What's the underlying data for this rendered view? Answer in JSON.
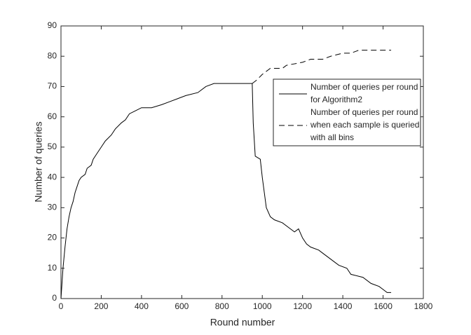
{
  "chart_data": {
    "type": "line",
    "xlabel": "Round number",
    "ylabel": "Number of queries",
    "xlim": [
      0,
      1800
    ],
    "xticks": [
      0,
      200,
      400,
      600,
      800,
      1000,
      1200,
      1400,
      1600,
      1800
    ],
    "ylim": [
      0,
      90
    ],
    "yticks": [
      0,
      10,
      20,
      30,
      40,
      50,
      60,
      70,
      80,
      90
    ],
    "grid": false,
    "legend": "upper right",
    "series": [
      {
        "name": "Number of queries per round\nfor Algorithm2",
        "color": "#000000",
        "style": "solid",
        "x": [
          0,
          5,
          10,
          20,
          30,
          40,
          50,
          60,
          70,
          80,
          90,
          100,
          120,
          130,
          150,
          160,
          180,
          200,
          220,
          250,
          270,
          300,
          320,
          340,
          370,
          400,
          450,
          500,
          540,
          580,
          620,
          680,
          720,
          760,
          950,
          955,
          965,
          990,
          1000,
          1010,
          1020,
          1040,
          1060,
          1100,
          1140,
          1160,
          1180,
          1200,
          1220,
          1240,
          1280,
          1300,
          1340,
          1380,
          1420,
          1440,
          1500,
          1540,
          1580,
          1600,
          1620,
          1640
        ],
        "values": [
          0,
          5,
          10,
          17,
          23,
          27,
          30,
          32,
          35,
          37,
          39,
          40,
          41,
          43,
          44,
          46,
          48,
          50,
          52,
          54,
          56,
          58,
          59,
          61,
          62,
          63,
          63,
          64,
          65,
          66,
          67,
          68,
          70,
          71,
          71,
          58,
          47,
          46,
          40,
          35,
          30,
          27,
          26,
          25,
          23,
          22,
          23,
          20,
          18,
          17,
          16,
          15,
          13,
          11,
          10,
          8,
          7,
          5,
          4,
          3,
          2,
          2
        ]
      },
      {
        "name": "Number of queries per round\nwhen each sample is queried\nwith all bins",
        "color": "#000000",
        "style": "dashed",
        "x": [
          950,
          970,
          1000,
          1020,
          1040,
          1100,
          1120,
          1200,
          1240,
          1300,
          1340,
          1400,
          1440,
          1480,
          1640
        ],
        "values": [
          71,
          72,
          74,
          75,
          76,
          76,
          77,
          78,
          79,
          79,
          80,
          81,
          81,
          82,
          82
        ]
      }
    ]
  }
}
